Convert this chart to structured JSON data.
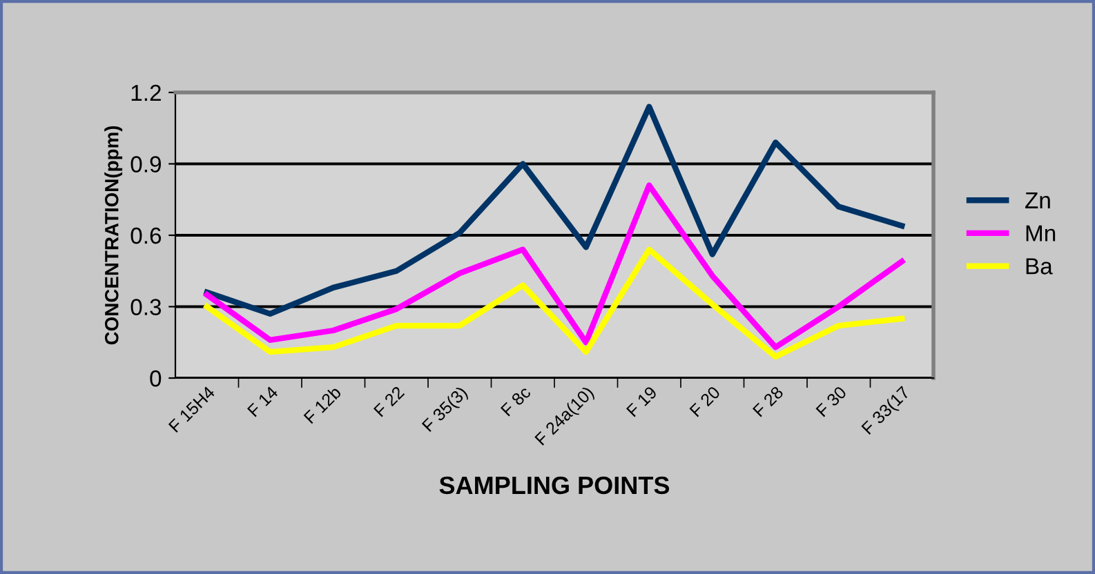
{
  "chart_data": {
    "type": "line",
    "xlabel": "SAMPLING POINTS",
    "ylabel": "CONCENTRATION(ppm)",
    "categories": [
      "F 15H4",
      "F 14",
      "F 12b",
      "F 22",
      "F 35(3)",
      "F 8c",
      "F 24a(10)",
      "F 19",
      "F 20",
      "F 28",
      "F 30",
      "F 33(17"
    ],
    "series": [
      {
        "name": "Zn",
        "color": "#003366",
        "values": [
          0.36,
          0.27,
          0.38,
          0.45,
          0.61,
          0.9,
          0.55,
          1.14,
          0.52,
          0.99,
          0.72,
          0.64
        ]
      },
      {
        "name": "Mn",
        "color": "#ff00ff",
        "values": [
          0.35,
          0.16,
          0.2,
          0.29,
          0.44,
          0.54,
          0.15,
          0.81,
          0.43,
          0.13,
          0.3,
          0.49
        ]
      },
      {
        "name": "Ba",
        "color": "#ffff00",
        "values": [
          0.3,
          0.11,
          0.13,
          0.22,
          0.22,
          0.39,
          0.11,
          0.54,
          0.31,
          0.09,
          0.22,
          0.25
        ]
      }
    ],
    "ylim": [
      0,
      1.2
    ],
    "yticks": [
      0,
      0.3,
      0.6,
      0.9,
      1.2
    ],
    "grid": "y",
    "legend": "right",
    "marker": "none",
    "line_style": "solid"
  }
}
